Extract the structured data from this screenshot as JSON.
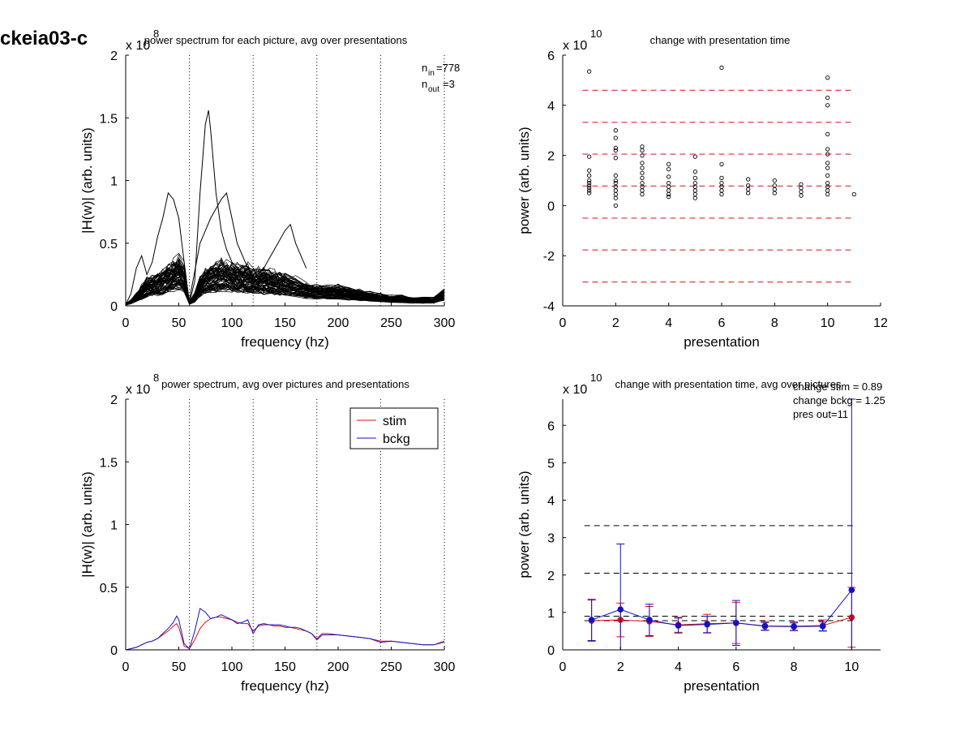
{
  "figure_label": "ckeia03-c",
  "chart_data": [
    {
      "type": "line",
      "title": "power spectrum for each picture, avg over presentations",
      "xlabel": "frequency (hz)",
      "ylabel": "|H(w)| (arb. units)",
      "exponent_label": "x 10",
      "exponent": "8",
      "xlim": [
        0,
        300
      ],
      "ylim": [
        0,
        2
      ],
      "xticks": [
        "0",
        "50",
        "100",
        "150",
        "200",
        "250",
        "300"
      ],
      "yticks": [
        "0",
        "0.5",
        "1",
        "1.5",
        "2"
      ],
      "vlines": [
        60,
        120,
        180,
        240,
        300
      ],
      "annotation": {
        "n_in": "n",
        "in_sub": "in",
        "in_val": "=778",
        "n_out": "n",
        "out_sub": "out",
        "out_val": "=3"
      },
      "envelope": {
        "x": [
          0,
          5,
          10,
          15,
          20,
          25,
          30,
          35,
          40,
          45,
          50,
          55,
          60,
          65,
          70,
          75,
          80,
          85,
          90,
          95,
          100,
          105,
          110,
          115,
          120,
          125,
          130,
          135,
          140,
          145,
          150,
          160,
          170,
          180,
          190,
          200,
          210,
          220,
          230,
          240,
          250,
          260,
          270,
          280,
          290,
          300
        ],
        "mean": [
          0.01,
          0.03,
          0.06,
          0.1,
          0.14,
          0.15,
          0.16,
          0.18,
          0.2,
          0.22,
          0.24,
          0.2,
          0.02,
          0.06,
          0.14,
          0.18,
          0.2,
          0.21,
          0.22,
          0.22,
          0.21,
          0.2,
          0.2,
          0.2,
          0.18,
          0.18,
          0.18,
          0.18,
          0.17,
          0.16,
          0.16,
          0.14,
          0.12,
          0.1,
          0.1,
          0.1,
          0.09,
          0.08,
          0.07,
          0.06,
          0.05,
          0.05,
          0.04,
          0.04,
          0.04,
          0.08
        ]
      },
      "highlight_curves": [
        {
          "x": [
            0,
            5,
            10,
            15,
            20,
            25,
            30,
            35,
            40,
            45,
            50,
            55,
            60
          ],
          "y": [
            0.01,
            0.1,
            0.3,
            0.4,
            0.25,
            0.35,
            0.55,
            0.7,
            0.9,
            0.85,
            0.7,
            0.35,
            0.02
          ]
        },
        {
          "x": [
            60,
            65,
            70,
            75,
            78,
            80,
            85,
            90,
            95,
            100,
            110,
            120
          ],
          "y": [
            0.02,
            0.2,
            0.9,
            1.45,
            1.56,
            1.4,
            0.9,
            0.6,
            0.45,
            0.35,
            0.25,
            0.2
          ]
        },
        {
          "x": [
            60,
            70,
            80,
            90,
            95,
            100,
            105,
            110,
            115
          ],
          "y": [
            0.05,
            0.5,
            0.7,
            0.85,
            0.9,
            0.7,
            0.5,
            0.4,
            0.3
          ]
        },
        {
          "x": [
            120,
            130,
            140,
            150,
            155,
            160,
            165,
            170
          ],
          "y": [
            0.2,
            0.3,
            0.45,
            0.6,
            0.65,
            0.5,
            0.4,
            0.3
          ]
        }
      ]
    },
    {
      "type": "scatter",
      "title": "change with presentation time",
      "xlabel": "presentation",
      "ylabel": "power (arb. units)",
      "exponent_label": "x 10",
      "exponent": "10",
      "xlim": [
        0,
        12
      ],
      "ylim": [
        -4,
        6
      ],
      "xticks": [
        "0",
        "2",
        "4",
        "6",
        "8",
        "10",
        "12"
      ],
      "yticks": [
        "-4",
        "-2",
        "0",
        "2",
        "4",
        "6"
      ],
      "hlines": [
        4.6,
        3.32,
        2.05,
        0.78,
        -0.5,
        -1.77,
        -3.05
      ],
      "points": [
        {
          "x": 1,
          "y": 5.35
        },
        {
          "x": 1,
          "y": 1.95
        },
        {
          "x": 1,
          "y": 1.4
        },
        {
          "x": 1,
          "y": 1.2
        },
        {
          "x": 1,
          "y": 1.0
        },
        {
          "x": 1,
          "y": 0.9
        },
        {
          "x": 1,
          "y": 0.8
        },
        {
          "x": 1,
          "y": 0.7
        },
        {
          "x": 1,
          "y": 0.6
        },
        {
          "x": 1,
          "y": 0.5
        },
        {
          "x": 2,
          "y": 3.0
        },
        {
          "x": 2,
          "y": 2.7
        },
        {
          "x": 2,
          "y": 2.3
        },
        {
          "x": 2,
          "y": 2.2
        },
        {
          "x": 2,
          "y": 1.9
        },
        {
          "x": 2,
          "y": 1.2
        },
        {
          "x": 2,
          "y": 1.0
        },
        {
          "x": 2,
          "y": 0.9
        },
        {
          "x": 2,
          "y": 0.75
        },
        {
          "x": 2,
          "y": 0.6
        },
        {
          "x": 2,
          "y": 0.45
        },
        {
          "x": 2,
          "y": 0.3
        },
        {
          "x": 2,
          "y": 0.0
        },
        {
          "x": 3,
          "y": 2.35
        },
        {
          "x": 3,
          "y": 2.2
        },
        {
          "x": 3,
          "y": 2.0
        },
        {
          "x": 3,
          "y": 1.7
        },
        {
          "x": 3,
          "y": 1.5
        },
        {
          "x": 3,
          "y": 1.3
        },
        {
          "x": 3,
          "y": 1.1
        },
        {
          "x": 3,
          "y": 0.9
        },
        {
          "x": 3,
          "y": 0.75
        },
        {
          "x": 3,
          "y": 0.6
        },
        {
          "x": 3,
          "y": 0.45
        },
        {
          "x": 4,
          "y": 1.65
        },
        {
          "x": 4,
          "y": 1.45
        },
        {
          "x": 4,
          "y": 1.15
        },
        {
          "x": 4,
          "y": 0.9
        },
        {
          "x": 4,
          "y": 0.75
        },
        {
          "x": 4,
          "y": 0.6
        },
        {
          "x": 4,
          "y": 0.45
        },
        {
          "x": 4,
          "y": 0.35
        },
        {
          "x": 5,
          "y": 1.95
        },
        {
          "x": 5,
          "y": 1.35
        },
        {
          "x": 5,
          "y": 1.1
        },
        {
          "x": 5,
          "y": 0.9
        },
        {
          "x": 5,
          "y": 0.75
        },
        {
          "x": 5,
          "y": 0.6
        },
        {
          "x": 5,
          "y": 0.45
        },
        {
          "x": 5,
          "y": 0.3
        },
        {
          "x": 6,
          "y": 5.5
        },
        {
          "x": 6,
          "y": 1.65
        },
        {
          "x": 6,
          "y": 1.1
        },
        {
          "x": 6,
          "y": 0.9
        },
        {
          "x": 6,
          "y": 0.75
        },
        {
          "x": 6,
          "y": 0.6
        },
        {
          "x": 6,
          "y": 0.45
        },
        {
          "x": 7,
          "y": 1.05
        },
        {
          "x": 7,
          "y": 0.8
        },
        {
          "x": 7,
          "y": 0.65
        },
        {
          "x": 7,
          "y": 0.5
        },
        {
          "x": 8,
          "y": 1.0
        },
        {
          "x": 8,
          "y": 0.8
        },
        {
          "x": 8,
          "y": 0.65
        },
        {
          "x": 8,
          "y": 0.5
        },
        {
          "x": 9,
          "y": 0.85
        },
        {
          "x": 9,
          "y": 0.7
        },
        {
          "x": 9,
          "y": 0.55
        },
        {
          "x": 9,
          "y": 0.4
        },
        {
          "x": 10,
          "y": 5.1
        },
        {
          "x": 10,
          "y": 4.3
        },
        {
          "x": 10,
          "y": 4.0
        },
        {
          "x": 10,
          "y": 2.85
        },
        {
          "x": 10,
          "y": 2.25
        },
        {
          "x": 10,
          "y": 2.05
        },
        {
          "x": 10,
          "y": 1.7
        },
        {
          "x": 10,
          "y": 1.5
        },
        {
          "x": 10,
          "y": 1.2
        },
        {
          "x": 10,
          "y": 0.9
        },
        {
          "x": 10,
          "y": 0.75
        },
        {
          "x": 10,
          "y": 0.6
        },
        {
          "x": 10,
          "y": 0.45
        },
        {
          "x": 11,
          "y": 0.45
        }
      ],
      "line_color": "#dd1111"
    },
    {
      "type": "line",
      "title": "power spectrum, avg over pictures and presentations",
      "xlabel": "frequency (hz)",
      "ylabel": "|H(w)| (arb. units)",
      "exponent_label": "x 10",
      "exponent": "8",
      "xlim": [
        0,
        300
      ],
      "ylim": [
        0,
        2
      ],
      "xticks": [
        "0",
        "50",
        "100",
        "150",
        "200",
        "250",
        "300"
      ],
      "yticks": [
        "0",
        "0.5",
        "1",
        "1.5",
        "2"
      ],
      "vlines": [
        60,
        120,
        180,
        240,
        300
      ],
      "legend_position": "top-right",
      "x": [
        0,
        5,
        10,
        15,
        20,
        25,
        30,
        35,
        40,
        45,
        48,
        50,
        55,
        60,
        65,
        70,
        75,
        80,
        85,
        90,
        95,
        100,
        105,
        110,
        115,
        120,
        125,
        130,
        135,
        140,
        145,
        150,
        155,
        160,
        165,
        170,
        175,
        180,
        185,
        190,
        200,
        210,
        220,
        230,
        240,
        250,
        260,
        270,
        280,
        290,
        300
      ],
      "series": [
        {
          "name": "stim",
          "color": "#dd1111",
          "values": [
            0.0,
            0.01,
            0.02,
            0.04,
            0.06,
            0.07,
            0.09,
            0.12,
            0.15,
            0.19,
            0.21,
            0.18,
            0.03,
            0.01,
            0.08,
            0.17,
            0.22,
            0.25,
            0.26,
            0.26,
            0.25,
            0.24,
            0.22,
            0.21,
            0.21,
            0.15,
            0.19,
            0.2,
            0.2,
            0.19,
            0.19,
            0.18,
            0.18,
            0.17,
            0.16,
            0.15,
            0.13,
            0.09,
            0.13,
            0.13,
            0.12,
            0.11,
            0.1,
            0.09,
            0.07,
            0.07,
            0.06,
            0.05,
            0.04,
            0.04,
            0.06
          ]
        },
        {
          "name": "bckg",
          "color": "#1111cc",
          "values": [
            0.0,
            0.01,
            0.02,
            0.04,
            0.06,
            0.07,
            0.09,
            0.13,
            0.17,
            0.22,
            0.27,
            0.24,
            0.05,
            0.01,
            0.15,
            0.33,
            0.3,
            0.25,
            0.26,
            0.28,
            0.26,
            0.24,
            0.21,
            0.22,
            0.24,
            0.13,
            0.2,
            0.21,
            0.2,
            0.2,
            0.2,
            0.19,
            0.18,
            0.18,
            0.17,
            0.15,
            0.13,
            0.08,
            0.12,
            0.12,
            0.12,
            0.11,
            0.1,
            0.09,
            0.06,
            0.07,
            0.06,
            0.05,
            0.04,
            0.04,
            0.07
          ]
        }
      ]
    },
    {
      "type": "line",
      "title": "change with presentation time, avg over pictures",
      "xlabel": "presentation",
      "ylabel": "power (arb. units)",
      "exponent_label": "x 10",
      "exponent": "10",
      "xlim": [
        0,
        11
      ],
      "ylim": [
        0,
        6.7
      ],
      "xticks": [
        "0",
        "2",
        "4",
        "6",
        "8",
        "10"
      ],
      "yticks": [
        "0",
        "1",
        "2",
        "3",
        "4",
        "5",
        "6"
      ],
      "hlines": [
        3.32,
        2.05,
        0.9,
        0.78
      ],
      "annotations": [
        "change stim = 0.89",
        "change bckg = 1.25",
        "pres out=11"
      ],
      "x": [
        1,
        2,
        3,
        4,
        5,
        6,
        7,
        8,
        9,
        10
      ],
      "series": [
        {
          "name": "",
          "color": "#dd1111",
          "values": [
            0.78,
            0.8,
            0.76,
            0.67,
            0.7,
            0.72,
            0.64,
            0.63,
            0.65,
            0.87
          ],
          "err": [
            0.55,
            0.45,
            0.4,
            0.2,
            0.25,
            0.55,
            0.12,
            0.12,
            0.15,
            0.8
          ]
        },
        {
          "name": "",
          "color": "#1111cc",
          "values": [
            0.8,
            1.08,
            0.8,
            0.65,
            0.68,
            0.72,
            0.63,
            0.62,
            0.63,
            1.6
          ],
          "err": [
            0.55,
            1.75,
            0.42,
            0.2,
            0.22,
            0.6,
            0.1,
            0.1,
            0.12,
            5.1
          ]
        }
      ]
    }
  ]
}
